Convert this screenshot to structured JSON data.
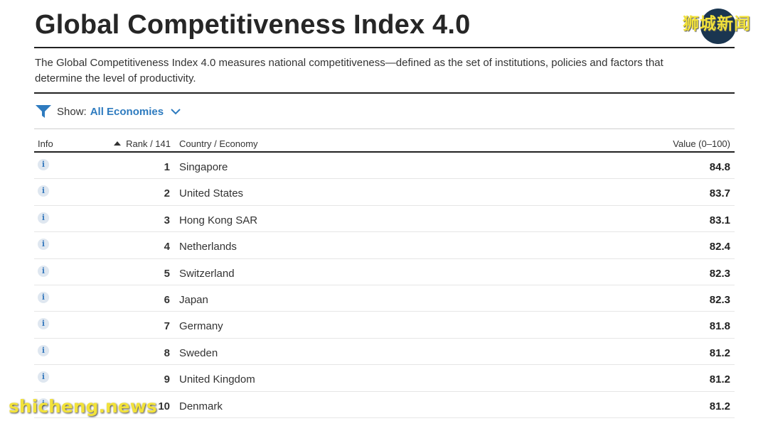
{
  "title": "Global Competitiveness Index 4.0",
  "description": "The Global Competitiveness Index 4.0 measures national competitiveness—defined as the set of institutions, policies and factors that determine the level of productivity.",
  "filter": {
    "label": "Show:",
    "value": "All Economies",
    "icon": "filter-funnel-icon",
    "accent": "#2e7bbf"
  },
  "table": {
    "headers": {
      "info": "Info",
      "rank": "Rank / 141",
      "country": "Country / Economy",
      "value": "Value (0–100)"
    },
    "rows": [
      {
        "rank": "1",
        "country": "Singapore",
        "value": "84.8"
      },
      {
        "rank": "2",
        "country": "United States",
        "value": "83.7"
      },
      {
        "rank": "3",
        "country": "Hong Kong SAR",
        "value": "83.1"
      },
      {
        "rank": "4",
        "country": "Netherlands",
        "value": "82.4"
      },
      {
        "rank": "5",
        "country": "Switzerland",
        "value": "82.3"
      },
      {
        "rank": "6",
        "country": "Japan",
        "value": "82.3"
      },
      {
        "rank": "7",
        "country": "Germany",
        "value": "81.8"
      },
      {
        "rank": "8",
        "country": "Sweden",
        "value": "81.2"
      },
      {
        "rank": "9",
        "country": "United Kingdom",
        "value": "81.2"
      },
      {
        "rank": "10",
        "country": "Denmark",
        "value": "81.2"
      }
    ]
  },
  "overlay": {
    "logo_text": "狮城新闻",
    "watermark": "shicheng.news"
  }
}
